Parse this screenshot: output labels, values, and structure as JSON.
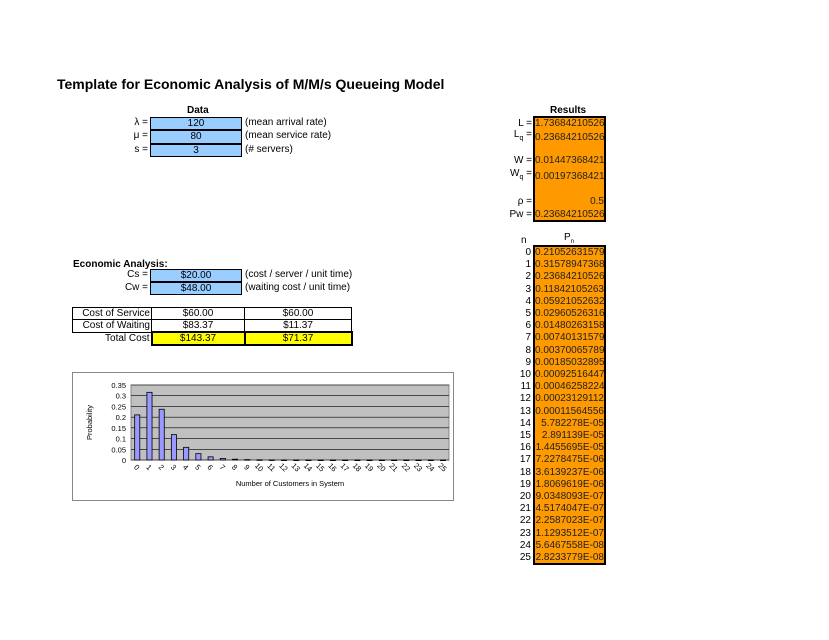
{
  "title": "Template for Economic Analysis of M/M/s Queueing Model",
  "data": {
    "header": "Data",
    "rows": [
      {
        "label": "λ =",
        "value": "120",
        "note": "(mean arrival rate)"
      },
      {
        "label": "μ =",
        "value": "80",
        "note": "(mean service rate)"
      },
      {
        "label": "s =",
        "value": "3",
        "note": "(# servers)"
      }
    ]
  },
  "results": {
    "header": "Results",
    "rows": [
      {
        "label": "L =",
        "value": "1.73684210526"
      },
      {
        "label": "Lq =",
        "value": "0.23684210526"
      },
      {
        "label": "W =",
        "value": "0.01447368421"
      },
      {
        "label": "Wq =",
        "value": "0.00197368421"
      },
      {
        "label": "ρ =",
        "value": "0.5"
      },
      {
        "label": "Pw =",
        "value": "0.23684210526"
      }
    ]
  },
  "pn": {
    "n_header": "n",
    "p_header": "Pn",
    "rows": [
      [
        "0",
        "0.21052631579"
      ],
      [
        "1",
        "0.31578947368"
      ],
      [
        "2",
        "0.23684210526"
      ],
      [
        "3",
        "0.11842105263"
      ],
      [
        "4",
        "0.05921052632"
      ],
      [
        "5",
        "0.02960526316"
      ],
      [
        "6",
        "0.01480263158"
      ],
      [
        "7",
        "0.00740131579"
      ],
      [
        "8",
        "0.00370065789"
      ],
      [
        "9",
        "0.00185032895"
      ],
      [
        "10",
        "0.00092516447"
      ],
      [
        "11",
        "0.00046258224"
      ],
      [
        "12",
        "0.00023129112"
      ],
      [
        "13",
        "0.00011564556"
      ],
      [
        "14",
        "5.782278E-05"
      ],
      [
        "15",
        "2.891139E-05"
      ],
      [
        "16",
        "1.4455695E-05"
      ],
      [
        "17",
        "7.2278475E-06"
      ],
      [
        "18",
        "3.6139237E-06"
      ],
      [
        "19",
        "1.8069619E-06"
      ],
      [
        "20",
        "9.0348093E-07"
      ],
      [
        "21",
        "4.5174047E-07"
      ],
      [
        "22",
        "2.2587023E-07"
      ],
      [
        "23",
        "1.1293512E-07"
      ],
      [
        "24",
        "5.6467558E-08"
      ],
      [
        "25",
        "2.8233779E-08"
      ]
    ]
  },
  "economic": {
    "header": "Economic Analysis:",
    "rows": [
      {
        "label": "Cs =",
        "value": "$20.00",
        "note": "(cost / server / unit time)"
      },
      {
        "label": "Cw =",
        "value": "$48.00",
        "note": "(waiting cost / unit time)"
      }
    ]
  },
  "cost_table": {
    "rows": [
      {
        "label": "Cost of Service",
        "v1": "$60.00",
        "v2": "$60.00"
      },
      {
        "label": "Cost of Waiting",
        "v1": "$83.37",
        "v2": "$11.37"
      },
      {
        "label": "Total Cost",
        "v1": "$143.37",
        "v2": "$71.37"
      }
    ]
  },
  "colors": {
    "input": "#99ccff",
    "result": "#ff9900",
    "total": "#ffff00",
    "bar": "#9999ff",
    "plot_bg": "#c0c0c0"
  },
  "chart_data": {
    "type": "bar",
    "xlabel": "Number of Customers in System",
    "ylabel": "Probability",
    "ylim": [
      0,
      0.35
    ],
    "yticks": [
      "0",
      "0.05",
      "0.1",
      "0.15",
      "0.2",
      "0.25",
      "0.3",
      "0.35"
    ],
    "grid": true,
    "categories": [
      "0",
      "1",
      "2",
      "3",
      "4",
      "5",
      "6",
      "7",
      "8",
      "9",
      "10",
      "11",
      "12",
      "13",
      "14",
      "15",
      "16",
      "17",
      "18",
      "19",
      "20",
      "21",
      "22",
      "23",
      "24",
      "25"
    ],
    "values": [
      0.2105,
      0.3158,
      0.2368,
      0.1184,
      0.0592,
      0.0296,
      0.0148,
      0.0074,
      0.0037,
      0.00185,
      0.00093,
      0.00046,
      0.00023,
      0.00012,
      6e-05,
      3e-05,
      1e-05,
      1e-05,
      0,
      0,
      0,
      0,
      0,
      0,
      0,
      0
    ]
  }
}
